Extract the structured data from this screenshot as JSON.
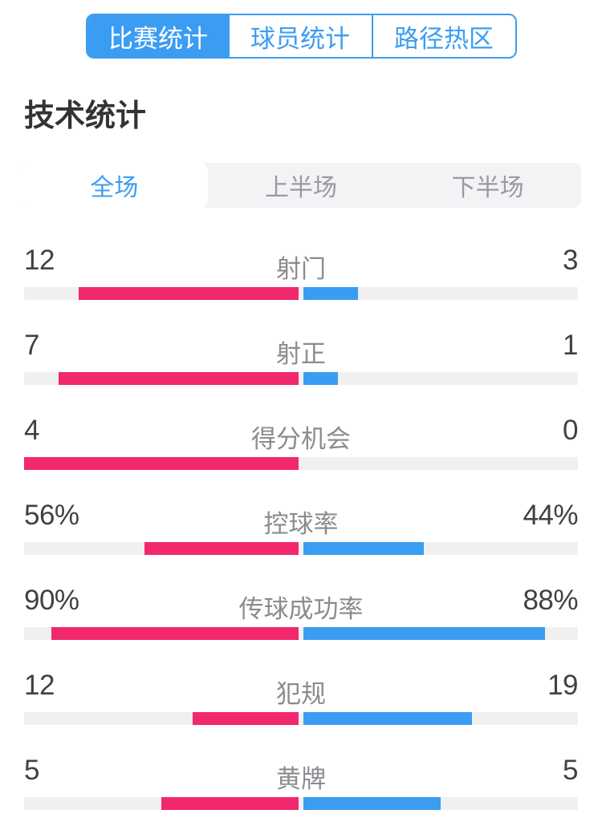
{
  "header_tabs": [
    {
      "label": "比赛统计",
      "active": true
    },
    {
      "label": "球员统计",
      "active": false
    },
    {
      "label": "路径热区",
      "active": false
    }
  ],
  "page_title": "技术统计",
  "period_tabs": [
    {
      "label": "全场",
      "active": true
    },
    {
      "label": "上半场",
      "active": false
    },
    {
      "label": "下半场",
      "active": false
    }
  ],
  "stats": {
    "rows": [
      {
        "label": "射门",
        "left": "12",
        "right": "3",
        "left_value": 12,
        "right_value": 3,
        "percent": false
      },
      {
        "label": "射正",
        "left": "7",
        "right": "1",
        "left_value": 7,
        "right_value": 1,
        "percent": false
      },
      {
        "label": "得分机会",
        "left": "4",
        "right": "0",
        "left_value": 4,
        "right_value": 0,
        "percent": false
      },
      {
        "label": "控球率",
        "left": "56%",
        "right": "44%",
        "left_value": 56,
        "right_value": 44,
        "percent": true
      },
      {
        "label": "传球成功率",
        "left": "90%",
        "right": "88%",
        "left_value": 90,
        "right_value": 88,
        "percent": true
      },
      {
        "label": "犯规",
        "left": "12",
        "right": "19",
        "left_value": 12,
        "right_value": 19,
        "percent": false
      },
      {
        "label": "黄牌",
        "left": "5",
        "right": "5",
        "left_value": 5,
        "right_value": 5,
        "percent": false
      }
    ]
  },
  "chart_data": {
    "type": "bar",
    "title": "技术统计",
    "period": "全场",
    "orientation": "horizontal-diverging",
    "categories": [
      "射门",
      "射正",
      "得分机会",
      "控球率",
      "传球成功率",
      "犯规",
      "黄牌"
    ],
    "series": [
      {
        "name": "left-team",
        "color": "#f2286e",
        "values": [
          12,
          7,
          4,
          56,
          90,
          12,
          5
        ]
      },
      {
        "name": "right-team",
        "color": "#3b9df2",
        "values": [
          3,
          1,
          0,
          44,
          88,
          19,
          5
        ]
      }
    ],
    "units": [
      "count",
      "count",
      "count",
      "percent",
      "percent",
      "count",
      "count"
    ],
    "legend_position": "none",
    "grid": false
  },
  "colors": {
    "accent_blue": "#3b9df2",
    "accent_pink": "#f2286e",
    "bar_track": "#f0f0f1",
    "period_bar_bg": "#f2f3f5",
    "title_text": "#333333",
    "number_text": "#3f4144",
    "label_text": "#8b8b90"
  }
}
